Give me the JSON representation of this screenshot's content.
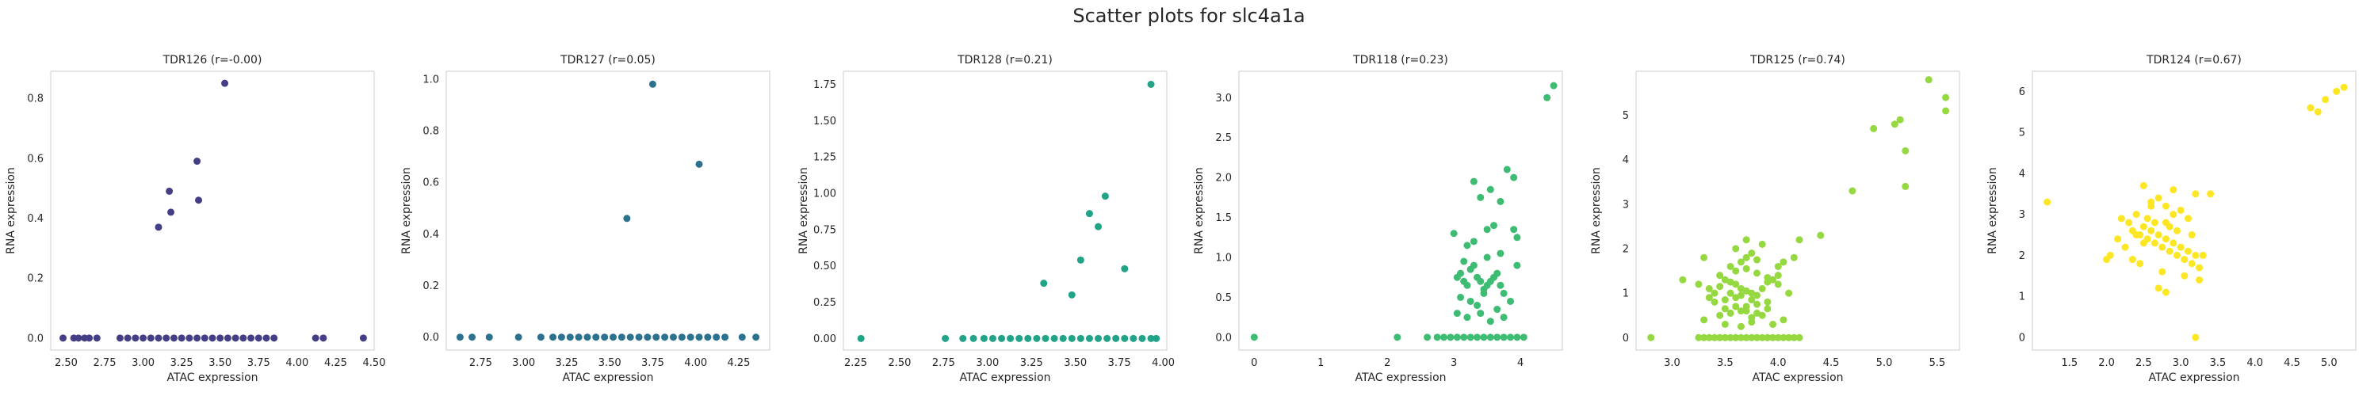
{
  "figure": {
    "title": "Scatter plots for slc4a1a"
  },
  "chart_data": [
    {
      "type": "scatter",
      "title": "TDR126 (r=-0.00)",
      "xlabel": "ATAC expression",
      "ylabel": "RNA expression",
      "xlim": [
        2.4,
        4.5
      ],
      "ylim": [
        -0.04,
        0.89
      ],
      "xticks": [
        "2.50",
        "2.75",
        "3.00",
        "3.25",
        "3.50",
        "3.75",
        "4.00",
        "4.25",
        "4.50"
      ],
      "yticks": [
        "0.0",
        "0.2",
        "0.4",
        "0.6",
        "0.8"
      ],
      "color": "#433e85",
      "grid": false,
      "x": [
        3.53,
        3.35,
        3.36,
        3.17,
        3.18,
        3.1,
        2.48,
        2.55,
        2.58,
        2.62,
        2.65,
        2.7,
        2.85,
        2.9,
        2.95,
        3.0,
        3.05,
        3.1,
        3.15,
        3.2,
        3.25,
        3.3,
        3.35,
        3.4,
        3.45,
        3.5,
        3.55,
        3.6,
        3.65,
        3.7,
        3.75,
        3.8,
        3.85,
        4.12,
        4.17,
        4.43
      ],
      "y": [
        0.85,
        0.59,
        0.46,
        0.49,
        0.42,
        0.37,
        0,
        0,
        0,
        0,
        0,
        0,
        0,
        0,
        0,
        0,
        0,
        0,
        0,
        0,
        0,
        0,
        0,
        0,
        0,
        0,
        0,
        0,
        0,
        0,
        0,
        0,
        0,
        0,
        0,
        0
      ]
    },
    {
      "type": "scatter",
      "title": "TDR127 (r=0.05)",
      "xlabel": "ATAC expression",
      "ylabel": "RNA expression",
      "xlim": [
        2.55,
        4.43
      ],
      "ylim": [
        -0.05,
        1.03
      ],
      "xticks": [
        "2.75",
        "3.00",
        "3.25",
        "3.50",
        "3.75",
        "4.00",
        "4.25"
      ],
      "yticks": [
        "0.0",
        "0.2",
        "0.4",
        "0.6",
        "0.8",
        "1.0"
      ],
      "color": "#2c728e",
      "grid": false,
      "x": [
        3.75,
        4.02,
        3.6,
        2.63,
        2.7,
        2.8,
        2.97,
        3.1,
        3.17,
        3.22,
        3.27,
        3.32,
        3.37,
        3.42,
        3.47,
        3.52,
        3.57,
        3.62,
        3.67,
        3.72,
        3.77,
        3.82,
        3.87,
        3.92,
        3.97,
        4.02,
        4.07,
        4.12,
        4.17,
        4.27,
        4.35
      ],
      "y": [
        0.98,
        0.67,
        0.46,
        0,
        0,
        0,
        0,
        0,
        0,
        0,
        0,
        0,
        0,
        0,
        0,
        0,
        0,
        0,
        0,
        0,
        0,
        0,
        0,
        0,
        0,
        0,
        0,
        0,
        0,
        0,
        0
      ]
    },
    {
      "type": "scatter",
      "title": "TDR128 (r=0.21)",
      "xlabel": "ATAC expression",
      "ylabel": "RNA expression",
      "xlim": [
        2.18,
        4.02
      ],
      "ylim": [
        -0.08,
        1.84
      ],
      "xticks": [
        "2.25",
        "2.50",
        "2.75",
        "3.00",
        "3.25",
        "3.50",
        "3.75",
        "4.00"
      ],
      "yticks": [
        "0.00",
        "0.25",
        "0.50",
        "0.75",
        "1.00",
        "1.25",
        "1.50",
        "1.75"
      ],
      "color": "#20a386",
      "grid": false,
      "x": [
        3.93,
        3.67,
        3.58,
        3.63,
        3.53,
        3.48,
        3.32,
        3.78,
        2.28,
        2.76,
        2.86,
        2.92,
        2.98,
        3.03,
        3.08,
        3.13,
        3.18,
        3.23,
        3.28,
        3.33,
        3.38,
        3.43,
        3.48,
        3.53,
        3.58,
        3.63,
        3.68,
        3.73,
        3.78,
        3.83,
        3.88,
        3.93,
        3.96
      ],
      "y": [
        1.75,
        0.98,
        0.86,
        0.77,
        0.54,
        0.3,
        0.38,
        0.48,
        0,
        0,
        0,
        0,
        0,
        0,
        0,
        0,
        0,
        0,
        0,
        0,
        0,
        0,
        0,
        0,
        0,
        0,
        0,
        0,
        0,
        0,
        0,
        0,
        0
      ]
    },
    {
      "type": "scatter",
      "title": "TDR118 (r=0.23)",
      "xlabel": "ATAC expression",
      "ylabel": "RNA expression",
      "xlim": [
        -0.23,
        4.63
      ],
      "ylim": [
        -0.16,
        3.33
      ],
      "xticks": [
        "0",
        "1",
        "2",
        "3",
        "4"
      ],
      "yticks": [
        "0.0",
        "0.5",
        "1.0",
        "1.5",
        "2.0",
        "2.5",
        "3.0"
      ],
      "color": "#3fbc73",
      "grid": false,
      "x": [
        4.5,
        4.4,
        3.8,
        3.3,
        3.9,
        3.55,
        3.4,
        3.7,
        3.05,
        3.1,
        3.15,
        3.2,
        3.25,
        3.3,
        3.35,
        3.4,
        3.45,
        3.5,
        3.55,
        3.6,
        3.65,
        3.7,
        3.75,
        3.0,
        3.2,
        3.3,
        3.5,
        3.6,
        3.9,
        3.95,
        3.1,
        3.25,
        3.35,
        3.45,
        3.65,
        3.85,
        3.95,
        3.05,
        3.2,
        3.4,
        3.55,
        3.75,
        3.15,
        3.5,
        3.7,
        0.0,
        2.15,
        2.6,
        2.75,
        2.85,
        2.95,
        3.05,
        3.15,
        3.25,
        3.35,
        3.45,
        3.55,
        3.65,
        3.75,
        3.85,
        3.95,
        4.05
      ],
      "y": [
        3.15,
        3.0,
        2.1,
        1.95,
        2.0,
        1.85,
        1.75,
        1.7,
        0.75,
        0.8,
        0.7,
        0.65,
        0.85,
        0.9,
        0.75,
        0.7,
        0.6,
        0.65,
        0.7,
        0.75,
        0.8,
        0.65,
        0.55,
        1.3,
        1.15,
        1.2,
        1.35,
        1.4,
        1.35,
        1.25,
        0.5,
        0.45,
        0.4,
        0.55,
        0.35,
        0.45,
        0.9,
        0.3,
        0.25,
        0.3,
        0.2,
        0.25,
        0.95,
        1.0,
        1.05,
        0,
        0,
        0,
        0,
        0,
        0,
        0,
        0,
        0,
        0,
        0,
        0,
        0,
        0,
        0,
        0,
        0
      ]
    },
    {
      "type": "scatter",
      "title": "TDR125 (r=0.74)",
      "xlabel": "ATAC expression",
      "ylabel": "RNA expression",
      "xlim": [
        2.66,
        5.71
      ],
      "ylim": [
        -0.28,
        5.99
      ],
      "xticks": [
        "3.0",
        "3.5",
        "4.0",
        "4.5",
        "5.0",
        "5.5"
      ],
      "yticks": [
        "0",
        "1",
        "2",
        "3",
        "4",
        "5"
      ],
      "color": "#95d840",
      "grid": false,
      "x": [
        5.42,
        5.58,
        5.58,
        5.15,
        5.1,
        5.2,
        4.9,
        5.2,
        4.7,
        4.4,
        4.2,
        4.15,
        4.05,
        4.0,
        3.1,
        3.3,
        3.25,
        3.35,
        3.4,
        3.45,
        3.5,
        3.55,
        3.6,
        3.65,
        3.7,
        3.75,
        3.8,
        3.85,
        3.9,
        3.95,
        4.0,
        3.4,
        3.5,
        3.6,
        3.7,
        3.8,
        3.9,
        3.45,
        3.55,
        3.65,
        3.75,
        3.85,
        3.55,
        3.65,
        3.7,
        3.75,
        3.85,
        3.35,
        3.45,
        3.6,
        3.7,
        3.8,
        3.9,
        4.0,
        3.5,
        3.65,
        3.75,
        3.6,
        3.7,
        3.8,
        3.5,
        3.6,
        3.7,
        3.8,
        3.9,
        3.3,
        3.55,
        3.65,
        3.75,
        4.1,
        3.95,
        4.05,
        2.8,
        3.25,
        3.3,
        3.35,
        3.4,
        3.45,
        3.5,
        3.55,
        3.6,
        3.65,
        3.7,
        3.75,
        3.8,
        3.85,
        3.9,
        3.95,
        4.0,
        4.05,
        4.1,
        4.15,
        4.2
      ],
      "y": [
        5.8,
        5.4,
        5.1,
        4.9,
        4.8,
        4.2,
        4.7,
        3.4,
        3.3,
        2.3,
        2.2,
        1.8,
        1.7,
        1.6,
        1.3,
        1.8,
        1.2,
        1.1,
        1.0,
        1.15,
        1.3,
        1.25,
        1.2,
        1.1,
        1.05,
        1.0,
        0.95,
        1.1,
        1.25,
        1.3,
        1.4,
        0.8,
        0.85,
        0.9,
        0.7,
        0.75,
        0.8,
        0.5,
        0.55,
        0.6,
        0.45,
        0.5,
        1.6,
        1.7,
        1.8,
        1.9,
        2.1,
        0.9,
        1.4,
        1.5,
        1.55,
        1.45,
        1.35,
        1.2,
        0.3,
        0.25,
        0.35,
        2.0,
        2.2,
        1.75,
        0.65,
        0.7,
        0.6,
        0.55,
        0.65,
        0.4,
        1.0,
        0.95,
        0.85,
        1.0,
        0.3,
        0.4,
        0,
        0,
        0,
        0,
        0,
        0,
        0,
        0,
        0,
        0,
        0,
        0,
        0,
        0,
        0,
        0,
        0,
        0,
        0,
        0,
        0
      ]
    },
    {
      "type": "scatter",
      "title": "TDR124 (r=0.67)",
      "xlabel": "ATAC expression",
      "ylabel": "RNA expression",
      "xlim": [
        1.0,
        5.36
      ],
      "ylim": [
        -0.31,
        6.49
      ],
      "xticks": [
        "1.5",
        "2.0",
        "2.5",
        "3.0",
        "3.5",
        "4.0",
        "4.5",
        "5.0"
      ],
      "yticks": [
        "0",
        "1",
        "2",
        "3",
        "4",
        "5",
        "6"
      ],
      "color": "#fde725",
      "grid": false,
      "x": [
        5.2,
        5.1,
        4.95,
        4.85,
        4.75,
        1.2,
        3.2,
        2.5,
        2.9,
        3.4,
        2.6,
        2.8,
        3.0,
        2.7,
        2.4,
        2.2,
        2.3,
        2.5,
        2.6,
        2.7,
        2.8,
        2.9,
        3.0,
        3.1,
        3.2,
        2.35,
        2.45,
        2.55,
        2.65,
        2.75,
        2.85,
        2.95,
        3.05,
        3.15,
        3.25,
        2.15,
        2.25,
        2.55,
        2.65,
        2.85,
        2.95,
        3.15,
        2.05,
        2.35,
        2.45,
        2.75,
        3.05,
        3.25,
        2.6,
        2.9,
        3.1,
        2.5,
        2.4,
        2.8,
        3.3,
        2.0,
        2.7,
        2.8,
        3.2
      ],
      "y": [
        6.1,
        6.0,
        5.8,
        5.5,
        5.6,
        3.3,
        3.5,
        3.7,
        3.6,
        3.5,
        3.3,
        3.2,
        3.1,
        3.4,
        3.0,
        2.9,
        2.8,
        2.7,
        2.6,
        2.5,
        2.4,
        2.3,
        2.2,
        2.1,
        2.0,
        2.6,
        2.5,
        2.4,
        2.3,
        2.2,
        2.1,
        2.0,
        1.9,
        1.8,
        1.7,
        2.4,
        2.2,
        2.9,
        2.8,
        2.7,
        2.6,
        2.5,
        2.0,
        1.9,
        1.8,
        1.6,
        1.5,
        1.4,
        3.2,
        3.0,
        2.9,
        2.3,
        2.5,
        2.8,
        2.0,
        1.9,
        1.2,
        1.1,
        0.0
      ]
    }
  ]
}
